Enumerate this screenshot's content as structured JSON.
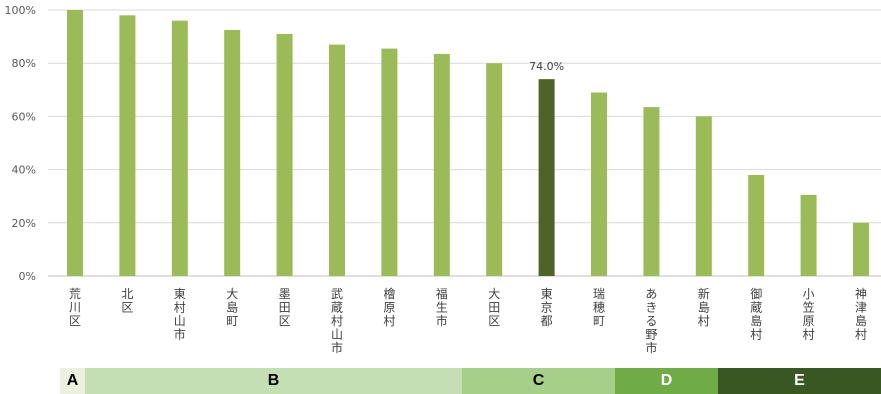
{
  "chart_data": {
    "type": "bar",
    "categories": [
      "荒川区",
      "北区",
      "東村山市",
      "大島町",
      "墨田区",
      "武蔵村山市",
      "檜原村",
      "福生市",
      "大田区",
      "東京都",
      "瑞穂町",
      "あきる野市",
      "新島村",
      "御蔵島村",
      "小笠原村",
      "神津島村"
    ],
    "values": [
      100,
      98,
      96,
      92.5,
      91,
      87,
      85.5,
      83.5,
      80,
      74.0,
      69,
      63.5,
      60,
      38,
      30.5,
      20
    ],
    "highlight_index": 9,
    "data_labels": [
      {
        "index": 9,
        "text": "74.0%"
      }
    ],
    "title": "",
    "xlabel": "",
    "ylabel": "",
    "ylim": [
      0,
      100
    ],
    "yticks": [
      "0%",
      "20%",
      "40%",
      "60%",
      "80%",
      "100%"
    ],
    "grid": true,
    "bar_color": "#9bbb59",
    "highlight_color": "#4f6228",
    "grid_color": "#d9d9d9"
  },
  "bands": [
    {
      "label": "A",
      "color": "#ebf1de",
      "text_color": "#000000"
    },
    {
      "label": "B",
      "color": "#c4dfb4",
      "text_color": "#000000"
    },
    {
      "label": "C",
      "color": "#a6cf8a",
      "text_color": "#000000"
    },
    {
      "label": "D",
      "color": "#6fac46",
      "text_color": "#ffffff"
    },
    {
      "label": "E",
      "color": "#385723",
      "text_color": "#ffffff"
    }
  ]
}
